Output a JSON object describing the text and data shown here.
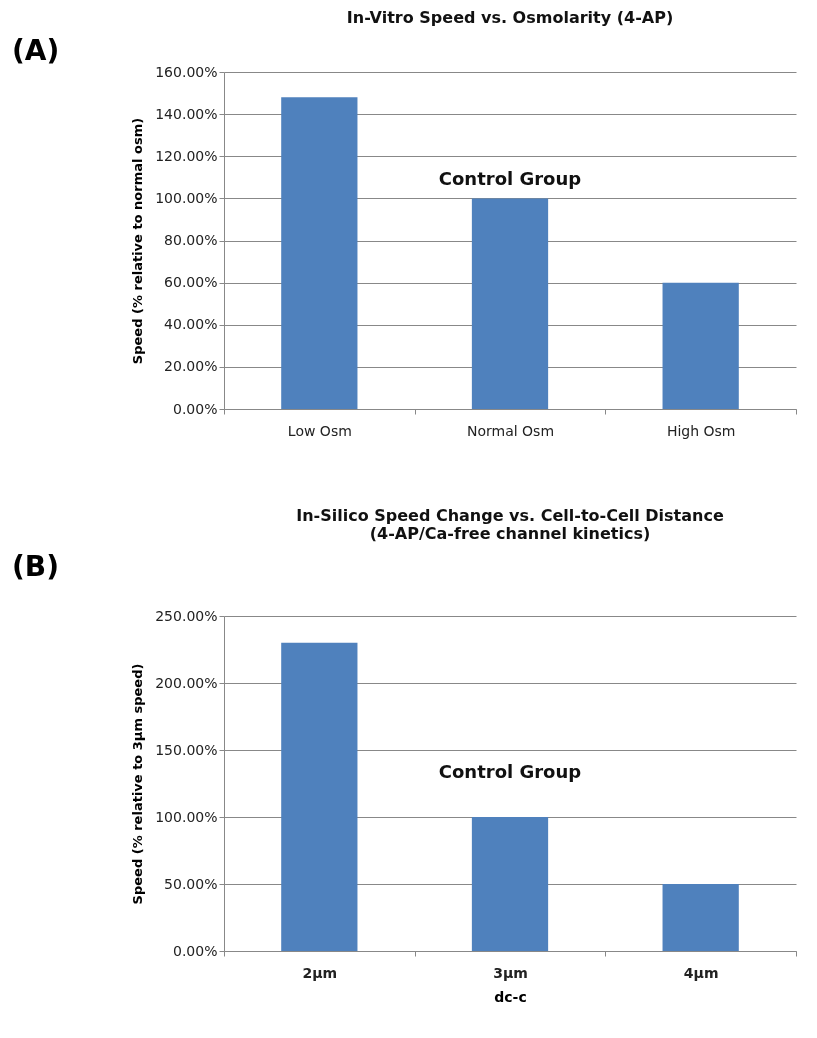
{
  "chart_data": [
    {
      "type": "bar",
      "title": "In-Vitro Speed vs. Osmolarity (4-AP)",
      "ylabel": "Speed (% relative to normal osm)",
      "categories": [
        "Low Osm",
        "Normal Osm",
        "High Osm"
      ],
      "values": [
        148,
        100,
        60
      ],
      "color": "#4f81bd",
      "ylim": [
        0,
        160
      ],
      "yticks": [
        {
          "value": 0,
          "label": "0.00%"
        },
        {
          "value": 20,
          "label": "20.00%"
        },
        {
          "value": 40,
          "label": "40.00%"
        },
        {
          "value": 60,
          "label": "60.00%"
        },
        {
          "value": 80,
          "label": "80.00%"
        },
        {
          "value": 100,
          "label": "100.00%"
        },
        {
          "value": 120,
          "label": "120.00%"
        },
        {
          "value": 140,
          "label": "140.00%"
        },
        {
          "value": 160,
          "label": "160.00%"
        }
      ],
      "grid": "y",
      "annotations": [
        "(A)",
        "Control Group"
      ]
    },
    {
      "type": "bar",
      "title": "In-Silico Speed Change vs. Cell-to-Cell Distance (4-AP/Ca-free channel kinetics)",
      "xlabel": "dc-c",
      "ylabel": "Speed (% relative to 3µm speed)",
      "categories": [
        "2µm",
        "3µm",
        "4µm"
      ],
      "values": [
        230,
        100,
        50
      ],
      "color": "#4f81bd",
      "ylim": [
        0,
        250
      ],
      "yticks": [
        {
          "value": 0,
          "label": "0.00%"
        },
        {
          "value": 50,
          "label": "50.00%"
        },
        {
          "value": 100,
          "label": "100.00%"
        },
        {
          "value": 150,
          "label": "150.00%"
        },
        {
          "value": 200,
          "label": "200.00%"
        },
        {
          "value": 250,
          "label": "250.00%"
        }
      ],
      "grid": "y",
      "annotations": [
        "(B)",
        "Control Group"
      ]
    }
  ]
}
